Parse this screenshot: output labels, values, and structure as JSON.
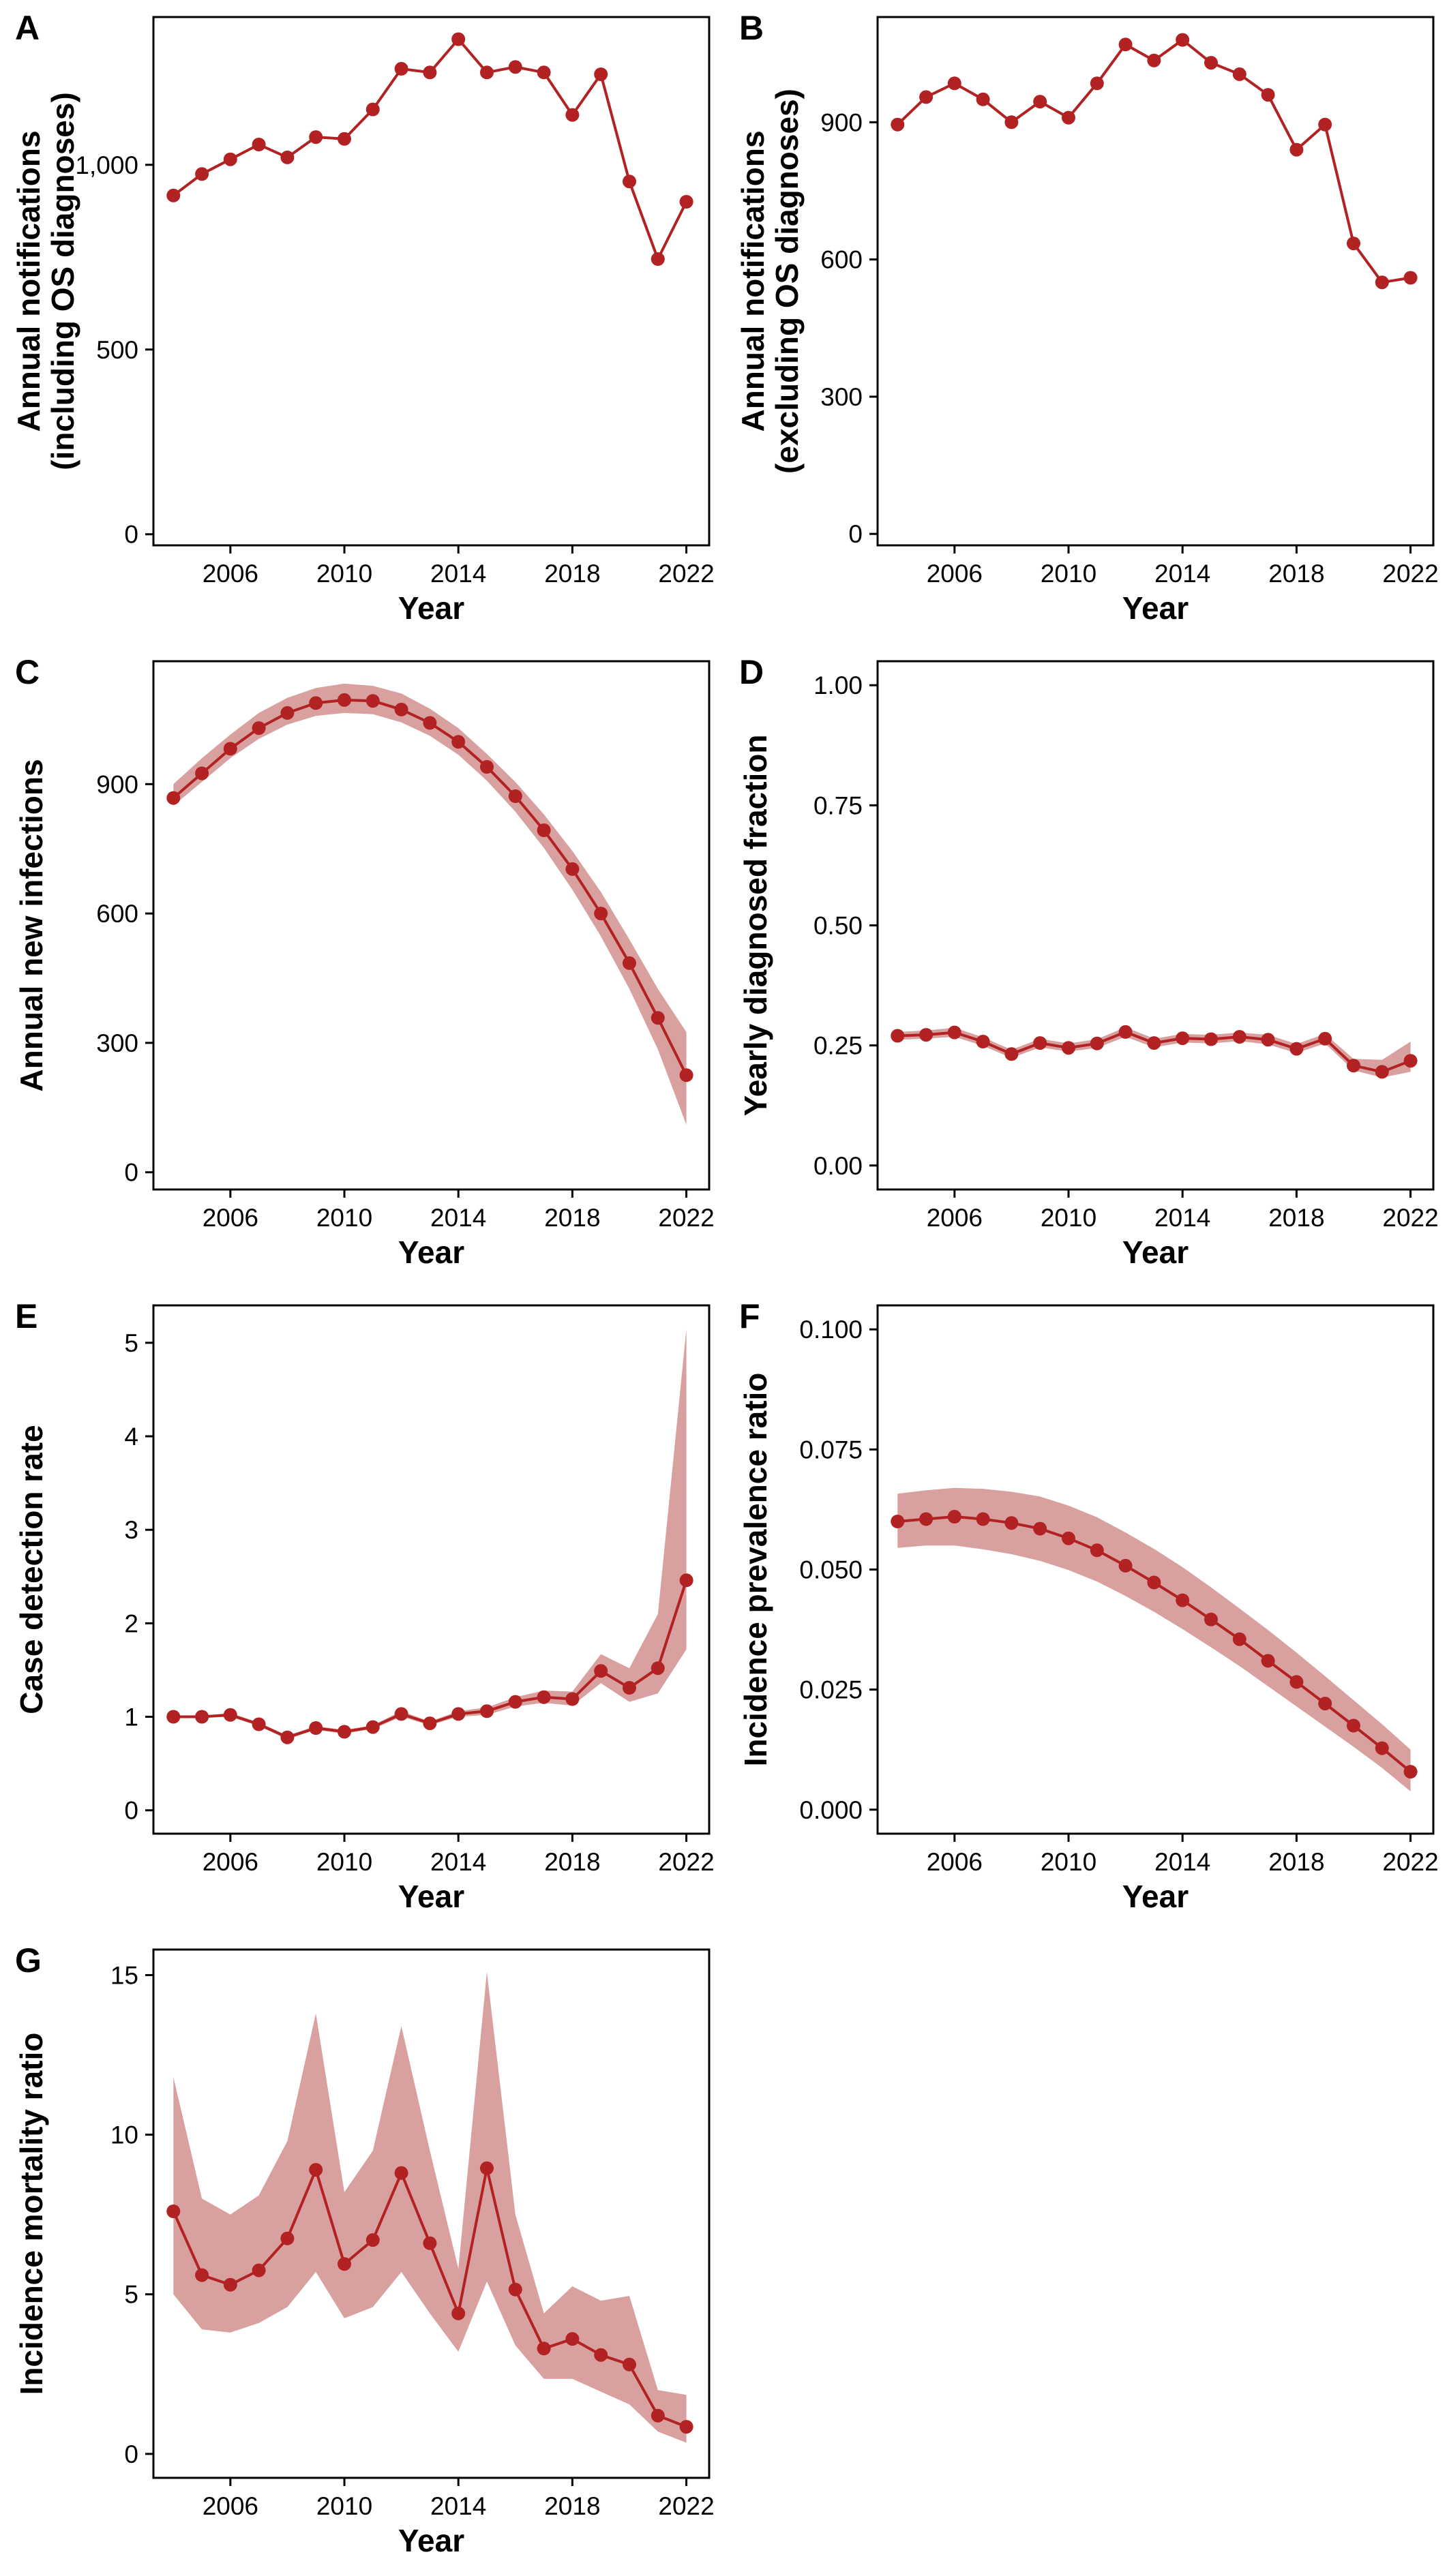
{
  "colors": {
    "series": "#b22222",
    "band": "#d9a0a0",
    "frame": "#000000",
    "background": "#ffffff"
  },
  "chart_data": [
    {
      "panel_label": "A",
      "type": "line",
      "xlabel": "Year",
      "ylabel_lines": [
        "Annual notifications",
        "(including OS diagnoses)"
      ],
      "xlim": [
        2003.3,
        2022.8
      ],
      "xticks": [
        2006,
        2010,
        2014,
        2018,
        2022
      ],
      "xtick_labels": [
        "2006",
        "2010",
        "2014",
        "2018",
        "2022"
      ],
      "ylim": [
        -30,
        1400
      ],
      "yticks": [
        0,
        500,
        1000
      ],
      "ytick_labels": [
        "0",
        "500",
        "1,000"
      ],
      "grid": false,
      "legend": "none",
      "x": [
        2004,
        2005,
        2006,
        2007,
        2008,
        2009,
        2010,
        2011,
        2012,
        2013,
        2014,
        2015,
        2016,
        2017,
        2018,
        2019,
        2020,
        2021,
        2022
      ],
      "y": [
        917,
        975,
        1015,
        1055,
        1020,
        1075,
        1070,
        1150,
        1260,
        1250,
        1340,
        1250,
        1265,
        1250,
        1135,
        1245,
        955,
        745,
        900
      ]
    },
    {
      "panel_label": "B",
      "type": "line",
      "xlabel": "Year",
      "ylabel_lines": [
        "Annual notifications",
        "(excluding OS diagnoses)"
      ],
      "xlim": [
        2003.3,
        2022.8
      ],
      "xticks": [
        2006,
        2010,
        2014,
        2018,
        2022
      ],
      "xtick_labels": [
        "2006",
        "2010",
        "2014",
        "2018",
        "2022"
      ],
      "ylim": [
        -25,
        1130
      ],
      "yticks": [
        0,
        300,
        600,
        900
      ],
      "ytick_labels": [
        "0",
        "300",
        "600",
        "900"
      ],
      "grid": false,
      "legend": "none",
      "x": [
        2004,
        2005,
        2006,
        2007,
        2008,
        2009,
        2010,
        2011,
        2012,
        2013,
        2014,
        2015,
        2016,
        2017,
        2018,
        2019,
        2020,
        2021,
        2022
      ],
      "y": [
        895,
        955,
        985,
        950,
        900,
        945,
        910,
        985,
        1070,
        1035,
        1080,
        1030,
        1005,
        960,
        840,
        895,
        635,
        550,
        560
      ]
    },
    {
      "panel_label": "C",
      "type": "line",
      "xlabel": "Year",
      "ylabel_lines": [
        "Annual new infections"
      ],
      "xlim": [
        2003.3,
        2022.8
      ],
      "xticks": [
        2006,
        2010,
        2014,
        2018,
        2022
      ],
      "xtick_labels": [
        "2006",
        "2010",
        "2014",
        "2018",
        "2022"
      ],
      "ylim": [
        -40,
        1185
      ],
      "yticks": [
        0,
        300,
        600,
        900
      ],
      "ytick_labels": [
        "0",
        "300",
        "600",
        "900"
      ],
      "grid": false,
      "legend": "none",
      "x": [
        2004,
        2005,
        2006,
        2007,
        2008,
        2009,
        2010,
        2011,
        2012,
        2013,
        2014,
        2015,
        2016,
        2017,
        2018,
        2019,
        2020,
        2021,
        2022
      ],
      "y": [
        868,
        925,
        982,
        1030,
        1065,
        1088,
        1095,
        1093,
        1073,
        1042,
        998,
        940,
        872,
        793,
        703,
        600,
        485,
        358,
        225
      ],
      "lower": [
        850,
        905,
        960,
        1005,
        1038,
        1058,
        1065,
        1062,
        1043,
        1012,
        968,
        908,
        836,
        752,
        655,
        547,
        425,
        285,
        110
      ],
      "upper": [
        900,
        960,
        1015,
        1065,
        1100,
        1123,
        1133,
        1128,
        1110,
        1075,
        1030,
        970,
        905,
        830,
        745,
        650,
        540,
        425,
        325
      ]
    },
    {
      "panel_label": "D",
      "type": "line",
      "xlabel": "Year",
      "ylabel_lines": [
        "Yearly diagnosed fraction"
      ],
      "xlim": [
        2003.3,
        2022.8
      ],
      "xticks": [
        2006,
        2010,
        2014,
        2018,
        2022
      ],
      "xtick_labels": [
        "2006",
        "2010",
        "2014",
        "2018",
        "2022"
      ],
      "ylim": [
        -0.05,
        1.05
      ],
      "yticks": [
        0,
        0.25,
        0.5,
        0.75,
        1.0
      ],
      "ytick_labels": [
        "0.00",
        "0.25",
        "0.50",
        "0.75",
        "1.00"
      ],
      "grid": false,
      "legend": "none",
      "x": [
        2004,
        2005,
        2006,
        2007,
        2008,
        2009,
        2010,
        2011,
        2012,
        2013,
        2014,
        2015,
        2016,
        2017,
        2018,
        2019,
        2020,
        2021,
        2022
      ],
      "y": [
        0.27,
        0.272,
        0.277,
        0.258,
        0.232,
        0.255,
        0.245,
        0.254,
        0.278,
        0.255,
        0.265,
        0.263,
        0.268,
        0.262,
        0.243,
        0.264,
        0.208,
        0.195,
        0.218
      ],
      "lower": [
        0.262,
        0.264,
        0.268,
        0.249,
        0.224,
        0.246,
        0.237,
        0.245,
        0.268,
        0.246,
        0.256,
        0.254,
        0.259,
        0.252,
        0.234,
        0.254,
        0.198,
        0.183,
        0.195
      ],
      "upper": [
        0.278,
        0.281,
        0.287,
        0.267,
        0.241,
        0.264,
        0.254,
        0.263,
        0.288,
        0.264,
        0.274,
        0.272,
        0.277,
        0.272,
        0.253,
        0.274,
        0.222,
        0.22,
        0.258
      ]
    },
    {
      "panel_label": "E",
      "type": "line",
      "xlabel": "Year",
      "ylabel_lines": [
        "Case detection rate"
      ],
      "xlim": [
        2003.3,
        2022.8
      ],
      "xticks": [
        2006,
        2010,
        2014,
        2018,
        2022
      ],
      "xtick_labels": [
        "2006",
        "2010",
        "2014",
        "2018",
        "2022"
      ],
      "ylim": [
        -0.25,
        5.4
      ],
      "yticks": [
        0,
        1,
        2,
        3,
        4,
        5
      ],
      "ytick_labels": [
        "0",
        "1",
        "2",
        "3",
        "4",
        "5"
      ],
      "grid": false,
      "legend": "none",
      "x": [
        2004,
        2005,
        2006,
        2007,
        2008,
        2009,
        2010,
        2011,
        2012,
        2013,
        2014,
        2015,
        2016,
        2017,
        2018,
        2019,
        2020,
        2021,
        2022
      ],
      "y": [
        1.0,
        1.0,
        1.02,
        0.92,
        0.78,
        0.88,
        0.84,
        0.89,
        1.03,
        0.93,
        1.03,
        1.06,
        1.16,
        1.21,
        1.19,
        1.49,
        1.31,
        1.52,
        2.46
      ],
      "lower": [
        0.99,
        0.99,
        1.0,
        0.9,
        0.76,
        0.86,
        0.82,
        0.87,
        1.0,
        0.91,
        1.0,
        1.02,
        1.11,
        1.15,
        1.12,
        1.36,
        1.16,
        1.25,
        1.72
      ],
      "upper": [
        1.01,
        1.01,
        1.04,
        0.94,
        0.8,
        0.9,
        0.86,
        0.91,
        1.06,
        0.95,
        1.06,
        1.1,
        1.21,
        1.28,
        1.27,
        1.67,
        1.52,
        2.1,
        5.15
      ]
    },
    {
      "panel_label": "F",
      "type": "line",
      "xlabel": "Year",
      "ylabel_lines": [
        "Incidence prevalence ratio"
      ],
      "xlim": [
        2003.3,
        2022.8
      ],
      "xticks": [
        2006,
        2010,
        2014,
        2018,
        2022
      ],
      "xtick_labels": [
        "2006",
        "2010",
        "2014",
        "2018",
        "2022"
      ],
      "ylim": [
        -0.005,
        0.105
      ],
      "yticks": [
        0,
        0.025,
        0.05,
        0.075,
        0.1
      ],
      "ytick_labels": [
        "0.000",
        "0.025",
        "0.050",
        "0.075",
        "0.100"
      ],
      "grid": false,
      "legend": "none",
      "x": [
        2004,
        2005,
        2006,
        2007,
        2008,
        2009,
        2010,
        2011,
        2012,
        2013,
        2014,
        2015,
        2016,
        2017,
        2018,
        2019,
        2020,
        2021,
        2022
      ],
      "y": [
        0.06,
        0.0605,
        0.061,
        0.0605,
        0.0597,
        0.0585,
        0.0565,
        0.054,
        0.0508,
        0.0473,
        0.0436,
        0.0396,
        0.0355,
        0.031,
        0.0266,
        0.0221,
        0.0175,
        0.0128,
        0.0079
      ],
      "lower": [
        0.0545,
        0.055,
        0.055,
        0.0542,
        0.0532,
        0.0518,
        0.0499,
        0.0475,
        0.0445,
        0.0412,
        0.0376,
        0.0338,
        0.0299,
        0.0257,
        0.0215,
        0.0173,
        0.0131,
        0.0087,
        0.0038
      ],
      "upper": [
        0.0658,
        0.0665,
        0.067,
        0.0668,
        0.0662,
        0.0652,
        0.0633,
        0.0609,
        0.0577,
        0.0543,
        0.0505,
        0.0463,
        0.0419,
        0.0374,
        0.0327,
        0.0278,
        0.0228,
        0.0178,
        0.0125
      ]
    },
    {
      "panel_label": "G",
      "type": "line",
      "xlabel": "Year",
      "ylabel_lines": [
        "Incidence mortality ratio"
      ],
      "xlim": [
        2003.3,
        2022.8
      ],
      "xticks": [
        2006,
        2010,
        2014,
        2018,
        2022
      ],
      "xtick_labels": [
        "2006",
        "2010",
        "2014",
        "2018",
        "2022"
      ],
      "ylim": [
        -0.75,
        15.8
      ],
      "yticks": [
        0,
        5,
        10,
        15
      ],
      "ytick_labels": [
        "0",
        "5",
        "10",
        "15"
      ],
      "grid": false,
      "legend": "none",
      "x": [
        2004,
        2005,
        2006,
        2007,
        2008,
        2009,
        2010,
        2011,
        2012,
        2013,
        2014,
        2015,
        2016,
        2017,
        2018,
        2019,
        2020,
        2021,
        2022
      ],
      "y": [
        7.6,
        5.6,
        5.3,
        5.75,
        6.75,
        8.9,
        5.95,
        6.7,
        8.8,
        6.6,
        4.4,
        8.95,
        5.15,
        3.3,
        3.6,
        3.1,
        2.8,
        1.2,
        0.85
      ],
      "lower": [
        5.0,
        3.9,
        3.8,
        4.1,
        4.6,
        5.7,
        4.25,
        4.6,
        5.7,
        4.4,
        3.2,
        5.4,
        3.4,
        2.35,
        2.35,
        1.95,
        1.55,
        0.7,
        0.35
      ],
      "upper": [
        11.8,
        8.0,
        7.5,
        8.1,
        9.8,
        13.8,
        8.2,
        9.5,
        13.4,
        9.5,
        5.8,
        15.1,
        7.5,
        4.4,
        5.25,
        4.8,
        4.95,
        2.0,
        1.85
      ]
    }
  ]
}
